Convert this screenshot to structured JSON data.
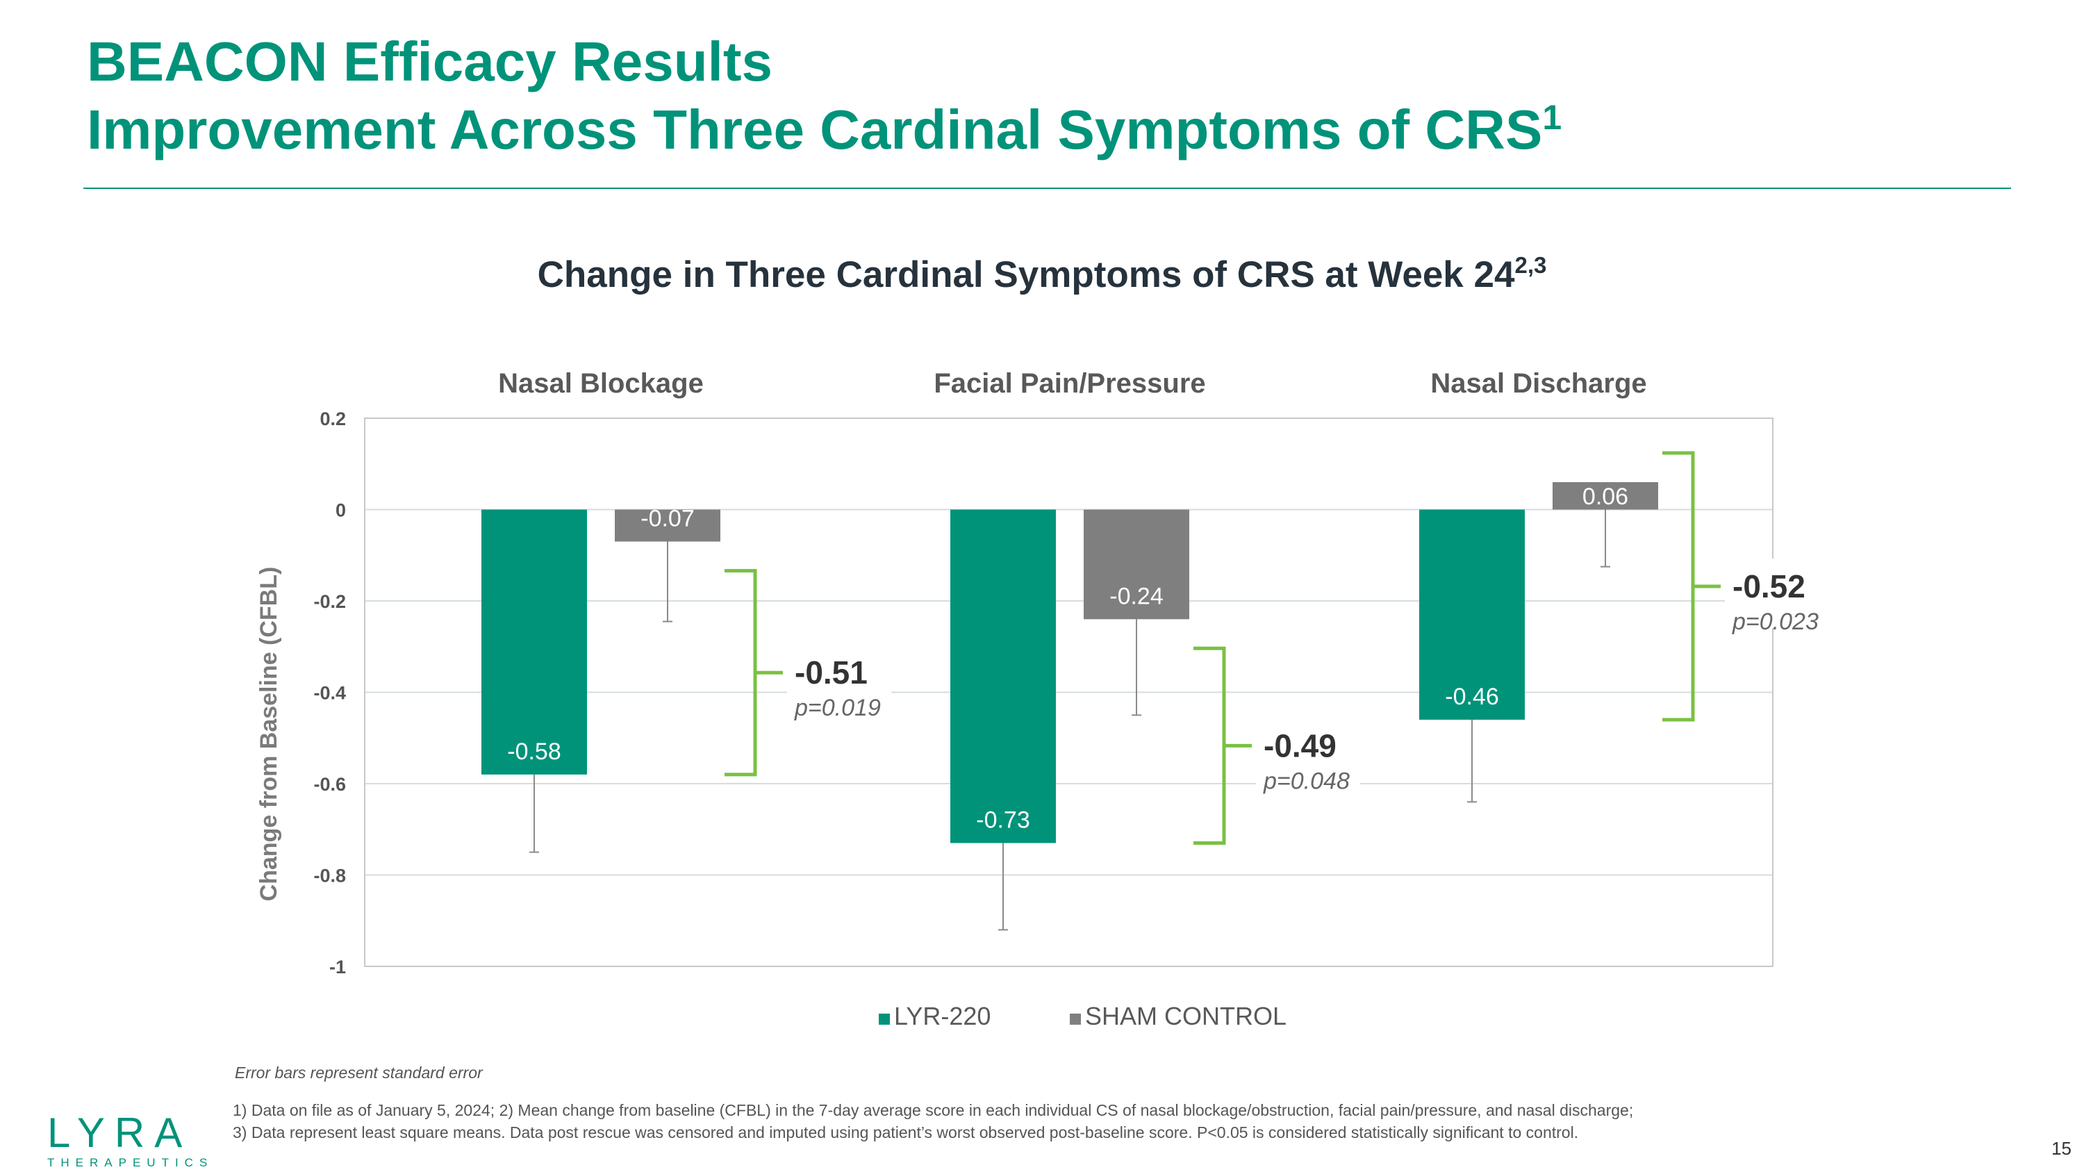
{
  "slide": {
    "title_line1": "BEACON Efficacy Results",
    "title_line2": "Improvement Across Three Cardinal Symptoms of CRS",
    "title_line2_sup": "1",
    "chart_title": "Change in Three Cardinal Symptoms of CRS at Week 24",
    "chart_title_sup": "2,3",
    "note": "Error bars represent standard error",
    "footnote_line1": "1) Data on file as of January 5, 2024; 2) Mean change from baseline (CFBL) in the 7-day average score in each individual CS of nasal blockage/obstruction, facial pain/pressure, and nasal discharge;",
    "footnote_line2": "3) Data represent least square means. Data post rescue was censored and imputed using patient’s worst observed post-baseline score. P<0.05 is considered statistically significant to control.",
    "logo_word": "LYRA",
    "logo_sub": "THERAPEUTICS",
    "page_number": "15"
  },
  "colors": {
    "brand": "#00937a",
    "lyr220": "#00937a",
    "sham": "#7f7f7f",
    "bracket": "#7ac143",
    "title_text": "#26323c"
  },
  "chart_data": {
    "type": "bar",
    "ylabel": "Change from Baseline (CFBL)",
    "ylim": [
      -1,
      0.2
    ],
    "yticks": [
      0.2,
      0,
      -0.2,
      -0.4,
      -0.6,
      -0.8,
      -1
    ],
    "ytick_labels": [
      "0.2",
      "0",
      "-0.2",
      "-0.4",
      "-0.6",
      "-0.8",
      "-1"
    ],
    "grid": true,
    "legend_position": "bottom",
    "categories": [
      "Nasal Blockage",
      "Facial Pain/Pressure",
      "Nasal Discharge"
    ],
    "series": [
      {
        "name": "LYR-220",
        "values": [
          -0.58,
          -0.73,
          -0.46
        ],
        "labels": [
          "-0.58",
          "-0.73",
          "-0.46"
        ],
        "error_low": [
          -0.75,
          -0.92,
          -0.64
        ]
      },
      {
        "name": "SHAM CONTROL",
        "values": [
          -0.07,
          -0.24,
          0.06
        ],
        "labels": [
          "-0.07",
          "-0.24",
          "0.06"
        ],
        "error_low": [
          -0.245,
          -0.45,
          -0.125
        ]
      }
    ],
    "differences": [
      {
        "value": "-0.51",
        "p": "p=0.019"
      },
      {
        "value": "-0.49",
        "p": "p=0.048"
      },
      {
        "value": "-0.52",
        "p": "p=0.023"
      }
    ]
  }
}
